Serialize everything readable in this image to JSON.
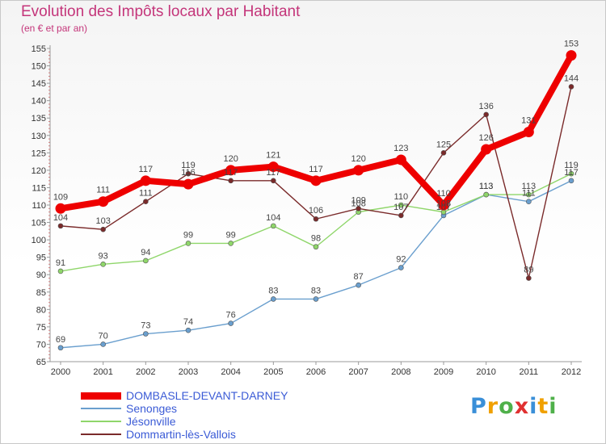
{
  "chart_data": {
    "type": "line",
    "title": "Evolution des Impôts locaux par Habitant",
    "subtitle": "(en € et par an)",
    "xlabel": "",
    "ylabel": "",
    "x": [
      "2000",
      "2001",
      "2002",
      "2003",
      "2004",
      "2005",
      "2006",
      "2007",
      "2008",
      "2009",
      "2010",
      "2011",
      "2012"
    ],
    "ylim": [
      65,
      155
    ],
    "yticks": [
      65,
      70,
      75,
      80,
      85,
      90,
      95,
      100,
      105,
      110,
      115,
      120,
      125,
      130,
      135,
      140,
      145,
      150,
      155
    ],
    "grid": false,
    "series": [
      {
        "name": "DOMBASLE-DEVANT-DARNEY",
        "color": "#ee0000",
        "values": [
          109,
          111,
          117,
          116,
          120,
          121,
          117,
          120,
          123,
          110,
          126,
          131,
          153
        ]
      },
      {
        "name": "Senonges",
        "color": "#6a9fce",
        "values": [
          69,
          70,
          73,
          74,
          76,
          83,
          83,
          87,
          92,
          107,
          113,
          111,
          117
        ]
      },
      {
        "name": "Jésonville",
        "color": "#8fd66a",
        "values": [
          91,
          93,
          94,
          99,
          99,
          104,
          98,
          108,
          110,
          108,
          113,
          113,
          119
        ]
      },
      {
        "name": "Dommartin-lès-Vallois",
        "color": "#7a2a2a",
        "values": [
          104,
          103,
          111,
          119,
          117,
          117,
          106,
          109,
          107,
          125,
          136,
          89,
          144
        ]
      }
    ]
  },
  "legend": {
    "items": [
      {
        "label": "DOMBASLE-DEVANT-DARNEY",
        "color": "#ee0000"
      },
      {
        "label": "Senonges",
        "color": "#6a9fce"
      },
      {
        "label": "Jésonville",
        "color": "#8fd66a"
      },
      {
        "label": "Dommartin-lès-Vallois",
        "color": "#7a2a2a"
      }
    ]
  },
  "logo": {
    "letters": [
      "P",
      "r",
      "o",
      "x",
      "i",
      "t",
      "i"
    ],
    "colors": [
      "#3a8fd8",
      "#f0a000",
      "#4fb04a",
      "#e03030",
      "#3a8fd8",
      "#f0a000",
      "#4fb04a"
    ]
  }
}
